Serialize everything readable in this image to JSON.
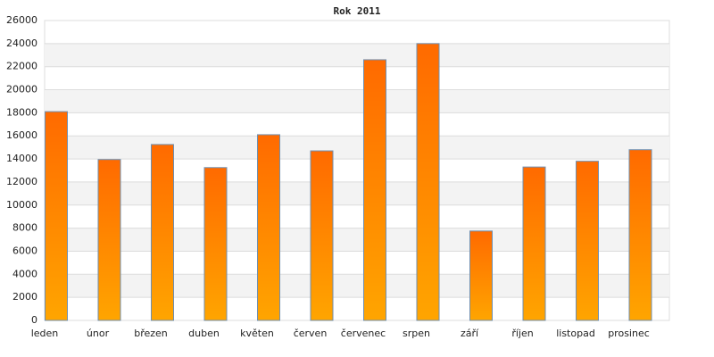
{
  "chart_data": {
    "type": "bar",
    "title": "Rok 2011",
    "categories": [
      "leden",
      "únor",
      "březen",
      "duben",
      "květen",
      "červen",
      "červenec",
      "srpen",
      "září",
      "říjen",
      "listopad",
      "prosinec"
    ],
    "values": [
      18100,
      13950,
      15250,
      13250,
      16100,
      14700,
      22600,
      24000,
      7750,
      13300,
      13800,
      14800
    ],
    "color": "#ff8200",
    "ylim": [
      0,
      26000
    ],
    "yticks": [
      0,
      2000,
      4000,
      6000,
      8000,
      10000,
      12000,
      14000,
      16000,
      18000,
      20000,
      22000,
      24000,
      26000
    ],
    "grid": true
  }
}
